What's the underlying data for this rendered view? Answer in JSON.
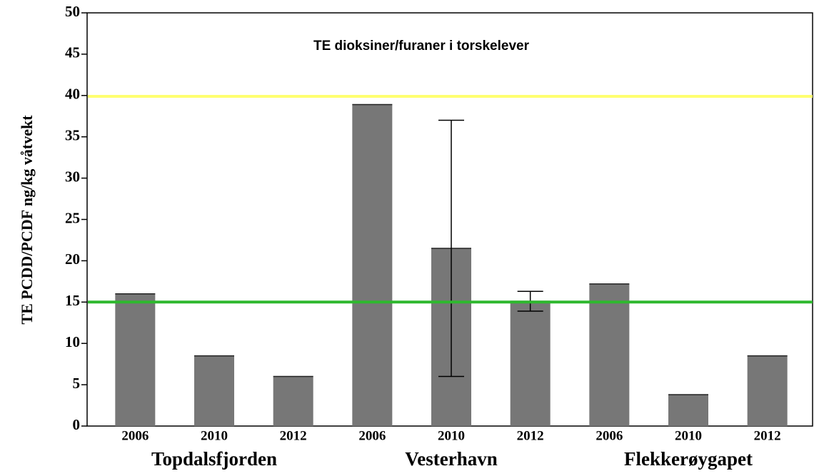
{
  "chart_data": {
    "type": "bar",
    "title": "TE dioksiner/furaner i torskelever",
    "y_label": "TE PCDD/PCDF ng/kg våtvekt",
    "categories": [
      "2006",
      "2010",
      "2012",
      "2006",
      "2010",
      "2012",
      "2006",
      "2010",
      "2012"
    ],
    "groups": [
      "Topdalsfjorden",
      "Vesterhavn",
      "Flekkerøygapet"
    ],
    "values": [
      16,
      8.5,
      6,
      38.9,
      21.5,
      15.1,
      17.2,
      3.8,
      8.5
    ],
    "errors": [
      null,
      null,
      null,
      null,
      15.5,
      1.2,
      null,
      null,
      null
    ],
    "color": "#777777",
    "reference_lines": [
      {
        "value": 39.9,
        "color": "#ffff70"
      },
      {
        "value": 15,
        "color": "#2eb82e"
      }
    ],
    "ylim": [
      0,
      50
    ],
    "yticks": [
      0,
      5,
      10,
      15,
      20,
      25,
      30,
      35,
      40,
      45,
      50
    ]
  }
}
